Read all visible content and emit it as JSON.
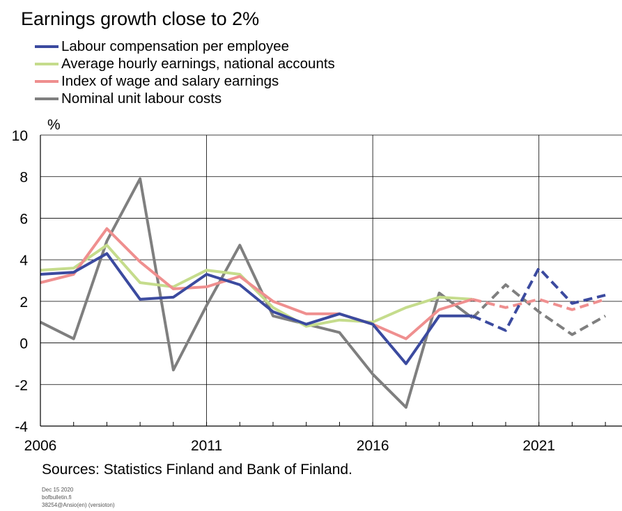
{
  "title": "Earnings growth close to 2%",
  "source": "Sources: Statistics Finland and Bank of Finland.",
  "footer": {
    "date": "Dec 15 2020",
    "site": "bofbulletin.fi",
    "code": "38254@Ansio(en) (versioton)"
  },
  "chart_data": {
    "type": "line",
    "ylabel": "%",
    "ylim": [
      -4,
      10
    ],
    "yticks": [
      -4,
      -2,
      0,
      2,
      4,
      6,
      8,
      10
    ],
    "xlim": [
      2006,
      2023.5
    ],
    "xticks": [
      2006,
      2011,
      2016,
      2021
    ],
    "grid": true,
    "legend_position": "top-left",
    "forecast_from": 2020,
    "series": [
      {
        "name": "Labour compensation per employee",
        "color": "#3b4a9f",
        "x": [
          2006,
          2007,
          2008,
          2009,
          2010,
          2011,
          2012,
          2013,
          2014,
          2015,
          2016,
          2017,
          2018,
          2019,
          2020,
          2021,
          2022,
          2023
        ],
        "values": [
          3.3,
          3.4,
          4.3,
          2.1,
          2.2,
          3.3,
          2.8,
          1.5,
          0.9,
          1.4,
          0.9,
          -1.0,
          1.3,
          1.3,
          0.6,
          3.6,
          1.9,
          2.3
        ]
      },
      {
        "name": "Average hourly earnings, national accounts",
        "color": "#c5dc8c",
        "x": [
          2006,
          2007,
          2008,
          2009,
          2010,
          2011,
          2012,
          2013,
          2014,
          2015,
          2016,
          2017,
          2018,
          2019
        ],
        "values": [
          3.5,
          3.6,
          4.7,
          2.9,
          2.7,
          3.5,
          3.3,
          1.7,
          0.8,
          1.1,
          1.0,
          1.7,
          2.2,
          2.1
        ]
      },
      {
        "name": "Index of wage and salary earnings",
        "color": "#ef8f8f",
        "x": [
          2006,
          2007,
          2008,
          2009,
          2010,
          2011,
          2012,
          2013,
          2014,
          2015,
          2016,
          2017,
          2018,
          2019,
          2020,
          2021,
          2022,
          2023
        ],
        "values": [
          2.9,
          3.3,
          5.5,
          3.9,
          2.6,
          2.7,
          3.2,
          2.0,
          1.4,
          1.4,
          0.9,
          0.2,
          1.6,
          2.1,
          1.7,
          2.1,
          1.6,
          2.1
        ]
      },
      {
        "name": "Nominal unit labour costs",
        "color": "#7f7f7f",
        "x": [
          2006,
          2007,
          2008,
          2009,
          2010,
          2011,
          2012,
          2013,
          2014,
          2015,
          2016,
          2017,
          2018,
          2019,
          2020,
          2021,
          2022,
          2023
        ],
        "values": [
          1.0,
          0.2,
          4.9,
          7.9,
          -1.3,
          1.8,
          4.7,
          1.3,
          0.9,
          0.5,
          -1.5,
          -3.1,
          2.4,
          1.2,
          2.8,
          1.5,
          0.4,
          1.3
        ]
      }
    ]
  }
}
